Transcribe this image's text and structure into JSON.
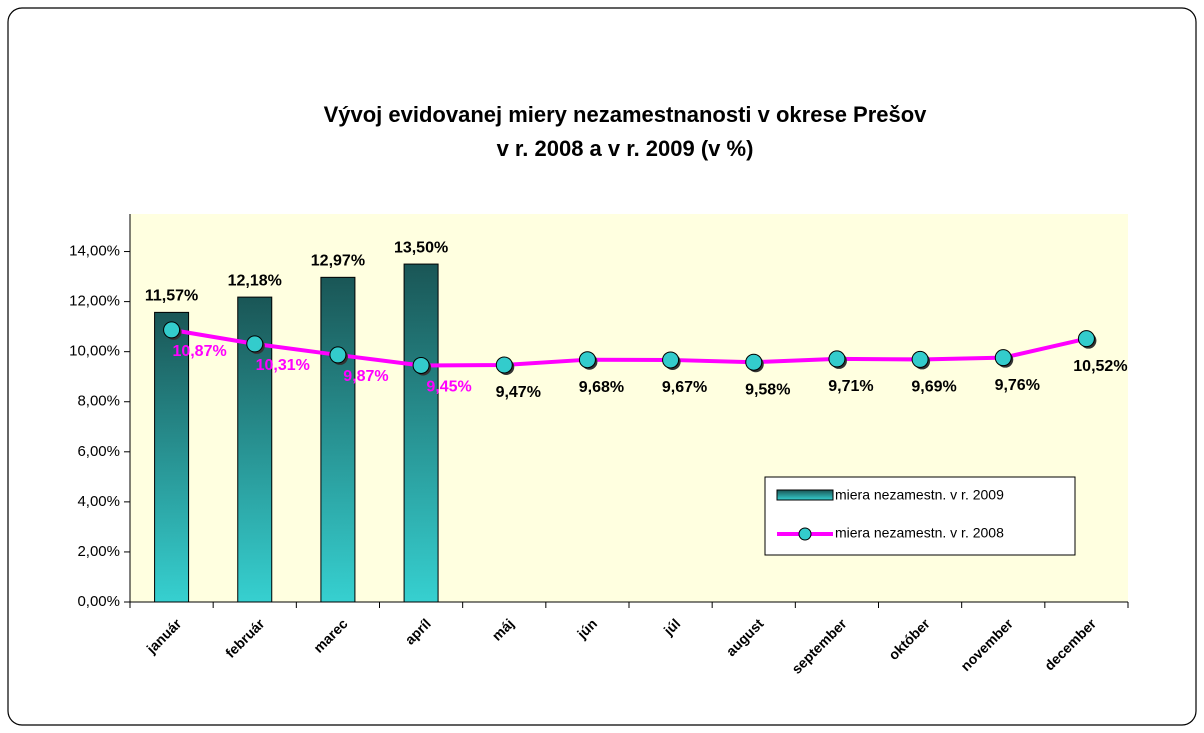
{
  "chart_data": {
    "type": "bar+line",
    "title": [
      "Vývoj evidovanej miery nezamestnanosti v okrese Prešov",
      "v r. 2008 a v r. 2009  (v %)"
    ],
    "categories": [
      "január",
      "február",
      "marec",
      "apríl",
      "máj",
      "jún",
      "júl",
      "august",
      "september",
      "október",
      "november",
      "december"
    ],
    "series": [
      {
        "name": "miera nezamestn. v r. 2009",
        "type": "bar",
        "color": "#33cccc",
        "values": [
          11.57,
          12.18,
          12.97,
          13.5,
          null,
          null,
          null,
          null,
          null,
          null,
          null,
          null
        ],
        "value_labels": [
          "11,57%",
          "12,18%",
          "12,97%",
          "13,50%",
          null,
          null,
          null,
          null,
          null,
          null,
          null,
          null
        ]
      },
      {
        "name": "miera nezamestn. v r. 2008",
        "type": "line",
        "color": "#ff00ff",
        "marker_color": "#33cccc",
        "values": [
          10.87,
          10.31,
          9.87,
          9.45,
          9.47,
          9.68,
          9.67,
          9.58,
          9.71,
          9.69,
          9.76,
          10.52
        ],
        "value_labels": [
          "10,87%",
          "10,31%",
          "9,87%",
          "9,45%",
          "9,47%",
          "9,68%",
          "9,67%",
          "9,58%",
          "9,71%",
          "9,69%",
          "9,76%",
          "10,52%"
        ]
      }
    ],
    "ylim": [
      0,
      15.5
    ],
    "yticks": [
      {
        "value": 0,
        "label": "0,00%"
      },
      {
        "value": 2,
        "label": "2,00%"
      },
      {
        "value": 4,
        "label": "4,00%"
      },
      {
        "value": 6,
        "label": "6,00%"
      },
      {
        "value": 8,
        "label": "8,00%"
      },
      {
        "value": 10,
        "label": "10,00%"
      },
      {
        "value": 12,
        "label": "12,00%"
      },
      {
        "value": 14,
        "label": "14,00%"
      }
    ],
    "legend": "lower right"
  }
}
